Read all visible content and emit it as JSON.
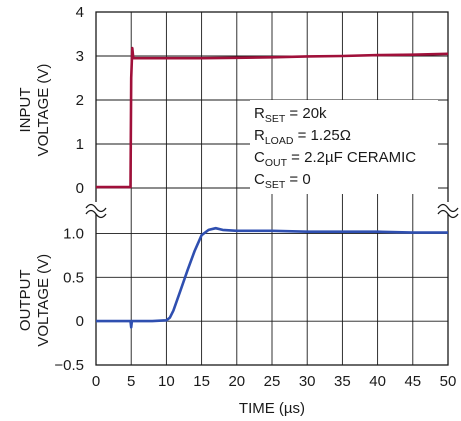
{
  "chart_data": {
    "type": "line",
    "xlabel": "TIME (µs)",
    "xlim": [
      0,
      50
    ],
    "xticks": [
      "0",
      "5",
      "10",
      "15",
      "20",
      "25",
      "30",
      "35",
      "40",
      "45",
      "50"
    ],
    "grid": true,
    "panels": [
      {
        "ylabel_lines": [
          "INPUT",
          "VOLTAGE (V)"
        ],
        "ylim": [
          0,
          4
        ],
        "yticks": [
          "0",
          "1",
          "2",
          "3",
          "4"
        ],
        "series": [
          {
            "color": "#a0103a",
            "x": [
              0,
              4.9,
              5.0,
              5.15,
              5.3,
              6,
              10,
              15,
              20,
              25,
              30,
              35,
              40,
              45,
              50
            ],
            "y": [
              0.02,
              0.02,
              2.5,
              3.18,
              2.95,
              2.95,
              2.95,
              2.95,
              2.96,
              2.97,
              2.99,
              3.0,
              3.02,
              3.03,
              3.05
            ]
          }
        ]
      },
      {
        "ylabel_lines": [
          "OUTPUT",
          "VOLTAGE (V)"
        ],
        "ylim": [
          -0.5,
          1.25
        ],
        "yticks": [
          "1.0",
          "0.5",
          "0",
          "−0.5"
        ],
        "ytick_values": [
          1.0,
          0.5,
          0,
          -0.5
        ],
        "series": [
          {
            "color": "#2f4fb0",
            "x": [
              0,
              4.9,
              5.0,
              5.1,
              5.2,
              8,
              10,
              10.5,
              11,
              12,
              13,
              14,
              15,
              16,
              17,
              18,
              20,
              25,
              30,
              35,
              40,
              45,
              50
            ],
            "y": [
              0.0,
              0.0,
              -0.07,
              0.0,
              0.0,
              0.0,
              0.01,
              0.04,
              0.12,
              0.35,
              0.58,
              0.8,
              0.98,
              1.04,
              1.06,
              1.04,
              1.03,
              1.03,
              1.02,
              1.02,
              1.02,
              1.01,
              1.01
            ]
          }
        ]
      }
    ],
    "annotations": [
      {
        "base": "R",
        "sub": "SET",
        "rest": " = 20k"
      },
      {
        "base": "R",
        "sub": "LOAD",
        "rest": " = 1.25Ω"
      },
      {
        "base": "C",
        "sub": "OUT",
        "rest": " = 2.2µF CERAMIC"
      },
      {
        "base": "C",
        "sub": "SET",
        "rest": " = 0"
      }
    ]
  }
}
